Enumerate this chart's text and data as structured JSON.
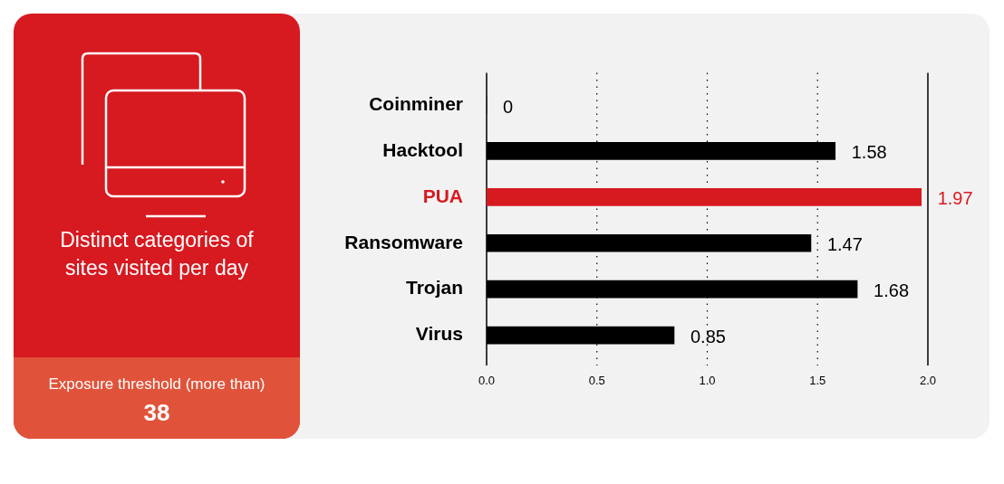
{
  "chart_data": {
    "type": "bar",
    "orientation": "horizontal",
    "title": "Distinct categories of sites visited per day",
    "categories": [
      "Coinminer",
      "Hacktool",
      "PUA",
      "Ransomware",
      "Trojan",
      "Virus"
    ],
    "values": [
      0,
      1.58,
      1.97,
      1.47,
      1.68,
      0.85
    ],
    "colors": [
      "#000000",
      "#000000",
      "#d71920",
      "#000000",
      "#000000",
      "#000000"
    ],
    "xlim": [
      0,
      2
    ],
    "xticks": [
      {
        "value": 0,
        "label": "0.0"
      },
      {
        "value": 0.5,
        "label": "0.5"
      },
      {
        "value": 1,
        "label": "1.0"
      },
      {
        "value": 1.5,
        "label": "1.5"
      },
      {
        "value": 2,
        "label": "2.0"
      }
    ],
    "grid": "x",
    "data_labels": true,
    "annotations": [
      "Exposure threshold (more than)",
      "38"
    ]
  }
}
